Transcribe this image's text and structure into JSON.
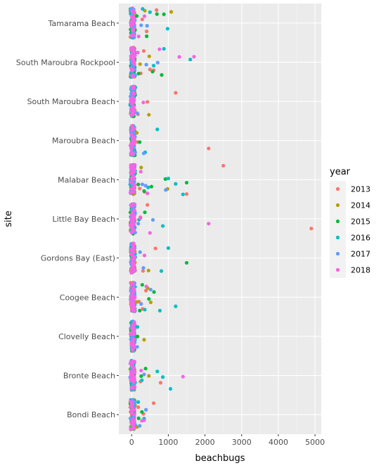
{
  "chart_data": {
    "type": "scatter",
    "title": "",
    "xlabel": "beachbugs",
    "ylabel": "site",
    "xlim": [
      -350,
      5170
    ],
    "x_ticks": [
      0,
      1000,
      2000,
      3000,
      4000,
      5000
    ],
    "categories": [
      "Bondi Beach",
      "Bronte Beach",
      "Clovelly Beach",
      "Coogee Beach",
      "Gordons Bay (East)",
      "Little Bay Beach",
      "Malabar Beach",
      "Maroubra Beach",
      "South Maroubra Beach",
      "South Maroubra Rockpool",
      "Tamarama Beach"
    ],
    "grid": true,
    "jitter": true,
    "legend": {
      "title": "year",
      "position": "right"
    },
    "series": [
      {
        "name": "2013",
        "color": "#F8766D",
        "points": [
          [
            "Tamarama Beach",
            680
          ],
          [
            "Tamarama Beach",
            290
          ],
          [
            "Tamarama Beach",
            410
          ],
          [
            "South Maroubra Rockpool",
            330
          ],
          [
            "South Maroubra Rockpool",
            250
          ],
          [
            "South Maroubra Rockpool",
            500
          ],
          [
            "South Maroubra Rockpool",
            600
          ],
          [
            "South Maroubra Beach",
            1200
          ],
          [
            "South Maroubra Beach",
            430
          ],
          [
            "South Maroubra Beach",
            170
          ],
          [
            "Maroubra Beach",
            2100
          ],
          [
            "Maroubra Beach",
            160
          ],
          [
            "Malabar Beach",
            2500
          ],
          [
            "Malabar Beach",
            1500
          ],
          [
            "Malabar Beach",
            350
          ],
          [
            "Malabar Beach",
            220
          ],
          [
            "Little Bay Beach",
            4900
          ],
          [
            "Little Bay Beach",
            430
          ],
          [
            "Little Bay Beach",
            240
          ],
          [
            "Gordons Bay (East)",
            650
          ],
          [
            "Gordons Bay (East)",
            310
          ],
          [
            "Coogee Beach",
            300
          ],
          [
            "Coogee Beach",
            200
          ],
          [
            "Coogee Beach",
            390
          ],
          [
            "Bronte Beach",
            790
          ],
          [
            "Bronte Beach",
            240
          ],
          [
            "Bondi Beach",
            600
          ],
          [
            "Bondi Beach",
            320
          ],
          [
            "Bondi Beach",
            180
          ]
        ]
      },
      {
        "name": "2014",
        "color": "#B79F00",
        "points": [
          [
            "Tamarama Beach",
            1080
          ],
          [
            "Tamarama Beach",
            360
          ],
          [
            "South Maroubra Rockpool",
            230
          ],
          [
            "South Maroubra Rockpool",
            480
          ],
          [
            "South Maroubra Beach",
            470
          ],
          [
            "Maroubra Beach",
            140
          ],
          [
            "Malabar Beach",
            980
          ],
          [
            "Malabar Beach",
            260
          ],
          [
            "Gordons Bay (East)",
            460
          ],
          [
            "Coogee Beach",
            520
          ],
          [
            "Coogee Beach",
            440
          ],
          [
            "Coogee Beach",
            140
          ],
          [
            "Clovelly Beach",
            340
          ],
          [
            "Bronte Beach",
            470
          ],
          [
            "Bondi Beach",
            150
          ]
        ]
      },
      {
        "name": "2015",
        "color": "#00BA38",
        "points": [
          [
            "Tamarama Beach",
            690
          ],
          [
            "Tamarama Beach",
            880
          ],
          [
            "Tamarama Beach",
            410
          ],
          [
            "Tamarama Beach",
            140
          ],
          [
            "South Maroubra Rockpool",
            570
          ],
          [
            "South Maroubra Rockpool",
            820
          ],
          [
            "South Maroubra Rockpool",
            190
          ],
          [
            "Maroubra Beach",
            220
          ],
          [
            "Malabar Beach",
            1500
          ],
          [
            "Malabar Beach",
            540
          ],
          [
            "Malabar Beach",
            920
          ],
          [
            "Malabar Beach",
            340
          ],
          [
            "Malabar Beach",
            180
          ],
          [
            "Little Bay Beach",
            360
          ],
          [
            "Gordons Bay (East)",
            1500
          ],
          [
            "Coogee Beach",
            610
          ],
          [
            "Coogee Beach",
            290
          ],
          [
            "Coogee Beach",
            470
          ],
          [
            "Coogee Beach",
            220
          ],
          [
            "Clovelly Beach",
            160
          ],
          [
            "Bronte Beach",
            380
          ],
          [
            "Bronte Beach",
            260
          ],
          [
            "Bondi Beach",
            190
          ],
          [
            "Bondi Beach",
            280
          ]
        ]
      },
      {
        "name": "2016",
        "color": "#00BFC4",
        "points": [
          [
            "Tamarama Beach",
            980
          ],
          [
            "Tamarama Beach",
            300
          ],
          [
            "Tamarama Beach",
            500
          ],
          [
            "South Maroubra Rockpool",
            1600
          ],
          [
            "South Maroubra Rockpool",
            880
          ],
          [
            "South Maroubra Rockpool",
            600
          ],
          [
            "Maroubra Beach",
            700
          ],
          [
            "Maroubra Beach",
            370
          ],
          [
            "Malabar Beach",
            1400
          ],
          [
            "Malabar Beach",
            1200
          ],
          [
            "Malabar Beach",
            1000
          ],
          [
            "Malabar Beach",
            450
          ],
          [
            "Little Bay Beach",
            850
          ],
          [
            "Little Bay Beach",
            200
          ],
          [
            "Gordons Bay (East)",
            1000
          ],
          [
            "Gordons Bay (East)",
            810
          ],
          [
            "Coogee Beach",
            1200
          ],
          [
            "Coogee Beach",
            770
          ],
          [
            "Coogee Beach",
            360
          ],
          [
            "Clovelly Beach",
            160
          ],
          [
            "Bronte Beach",
            850
          ],
          [
            "Bronte Beach",
            1060
          ],
          [
            "Bronte Beach",
            700
          ],
          [
            "Bronte Beach",
            280
          ],
          [
            "Bondi Beach",
            340
          ],
          [
            "Bondi Beach",
            180
          ]
        ]
      },
      {
        "name": "2017",
        "color": "#619CFF",
        "points": [
          [
            "Tamarama Beach",
            260
          ],
          [
            "Tamarama Beach",
            420
          ],
          [
            "South Maroubra Rockpool",
            710
          ],
          [
            "South Maroubra Rockpool",
            400
          ],
          [
            "South Maroubra Beach",
            150
          ],
          [
            "Maroubra Beach",
            330
          ],
          [
            "Malabar Beach",
            930
          ],
          [
            "Malabar Beach",
            380
          ],
          [
            "Malabar Beach",
            290
          ],
          [
            "Little Bay Beach",
            580
          ],
          [
            "Little Bay Beach",
            180
          ],
          [
            "Gordons Bay (East)",
            320
          ],
          [
            "Gordons Bay (East)",
            230
          ],
          [
            "Coogee Beach",
            520
          ],
          [
            "Coogee Beach",
            260
          ],
          [
            "Clovelly Beach",
            150
          ],
          [
            "Bronte Beach",
            340
          ],
          [
            "Bondi Beach",
            390
          ],
          [
            "Bondi Beach",
            220
          ]
        ]
      },
      {
        "name": "2018",
        "color": "#F564E3",
        "points": [
          [
            "Tamarama Beach",
            350
          ],
          [
            "Tamarama Beach",
            190
          ],
          [
            "South Maroubra Rockpool",
            1700
          ],
          [
            "South Maroubra Rockpool",
            1300
          ],
          [
            "South Maroubra Rockpool",
            760
          ],
          [
            "South Maroubra Rockpool",
            170
          ],
          [
            "South Maroubra Beach",
            320
          ],
          [
            "Malabar Beach",
            430
          ],
          [
            "Malabar Beach",
            250
          ],
          [
            "Little Bay Beach",
            2100
          ],
          [
            "Little Bay Beach",
            500
          ],
          [
            "Little Bay Beach",
            240
          ],
          [
            "Gordons Bay (East)",
            350
          ],
          [
            "Coogee Beach",
            400
          ],
          [
            "Bronte Beach",
            1400
          ],
          [
            "Bronte Beach",
            260
          ],
          [
            "Bondi Beach",
            280
          ],
          [
            "Bondi Beach",
            340
          ]
        ]
      }
    ]
  }
}
